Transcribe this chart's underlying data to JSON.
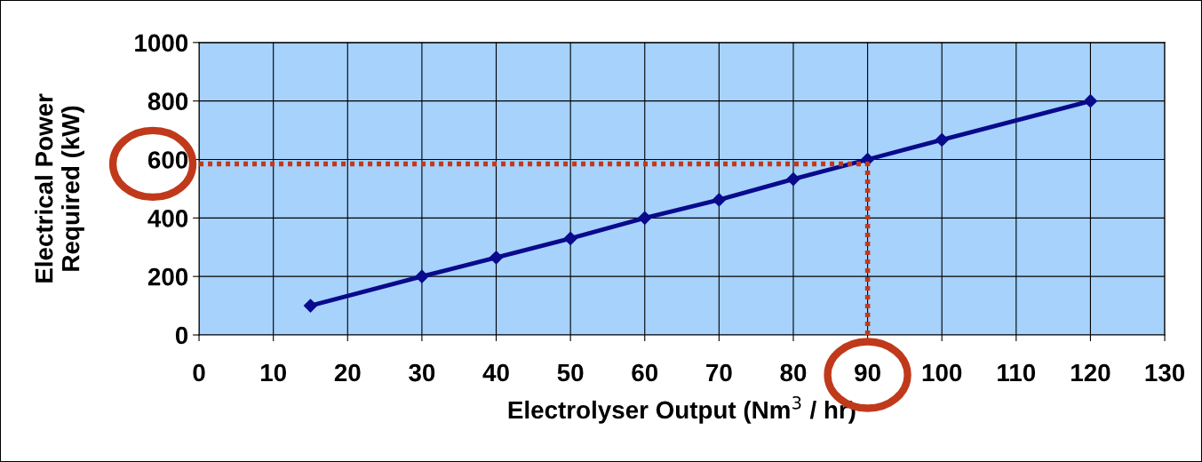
{
  "chart_data": {
    "type": "line",
    "xlabel": "Electrolyser Output (Nm$^{3}$ / hr)",
    "ylabel": "Electrical Power\nRequired (kW)",
    "series": [
      {
        "color": "#0a0a8c",
        "x": [
          15,
          30,
          40,
          50,
          60,
          70,
          80,
          90,
          100,
          120
        ],
        "values": [
          100,
          200,
          265,
          330,
          400,
          462,
          533,
          600,
          667,
          800
        ],
        "marker": "diamond",
        "line_style": "solid"
      },
      {
        "color": "#c0391b",
        "x": [
          0,
          90,
          90
        ],
        "values": [
          585,
          585,
          0
        ],
        "marker": "none",
        "line_style": "dotted"
      }
    ],
    "xlim": [
      0,
      130
    ],
    "xticks": [
      0,
      10,
      20,
      30,
      40,
      50,
      60,
      70,
      80,
      90,
      100,
      110,
      120,
      130
    ],
    "ylim": [
      0,
      1000
    ],
    "yticks": [
      0,
      200,
      400,
      600,
      800,
      1000
    ],
    "grid": true,
    "legend": false
  }
}
